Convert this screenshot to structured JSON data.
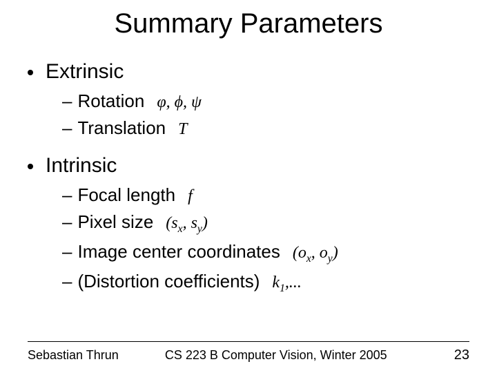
{
  "title": "Summary Parameters",
  "bullets": {
    "extrinsic": {
      "label": "Extrinsic",
      "rotation": {
        "label": "Rotation",
        "math": "φ, ϕ, ψ"
      },
      "translation": {
        "label": "Translation",
        "math": "T"
      }
    },
    "intrinsic": {
      "label": "Intrinsic",
      "focal": {
        "label": "Focal length",
        "math": "f"
      },
      "pixel": {
        "label": "Pixel size",
        "math_pre": "(s",
        "math_sub1": "x",
        "math_mid": ", s",
        "math_sub2": "y",
        "math_post": ")"
      },
      "center": {
        "label": "Image center coordinates",
        "math_pre": "(o",
        "math_sub1": "x",
        "math_mid": ", o",
        "math_sub2": "y",
        "math_post": ")"
      },
      "distortion": {
        "label": "(Distortion coefficients)",
        "math_pre": "k",
        "math_sub1": "1",
        "math_post": ",..."
      }
    }
  },
  "footer": {
    "author": "Sebastian Thrun",
    "course": "CS 223 B Computer Vision, Winter 2005",
    "page": "23"
  },
  "colors": {
    "text": "#000000",
    "background": "#ffffff"
  },
  "fonts": {
    "body": "Arial",
    "math": "Times New Roman"
  }
}
